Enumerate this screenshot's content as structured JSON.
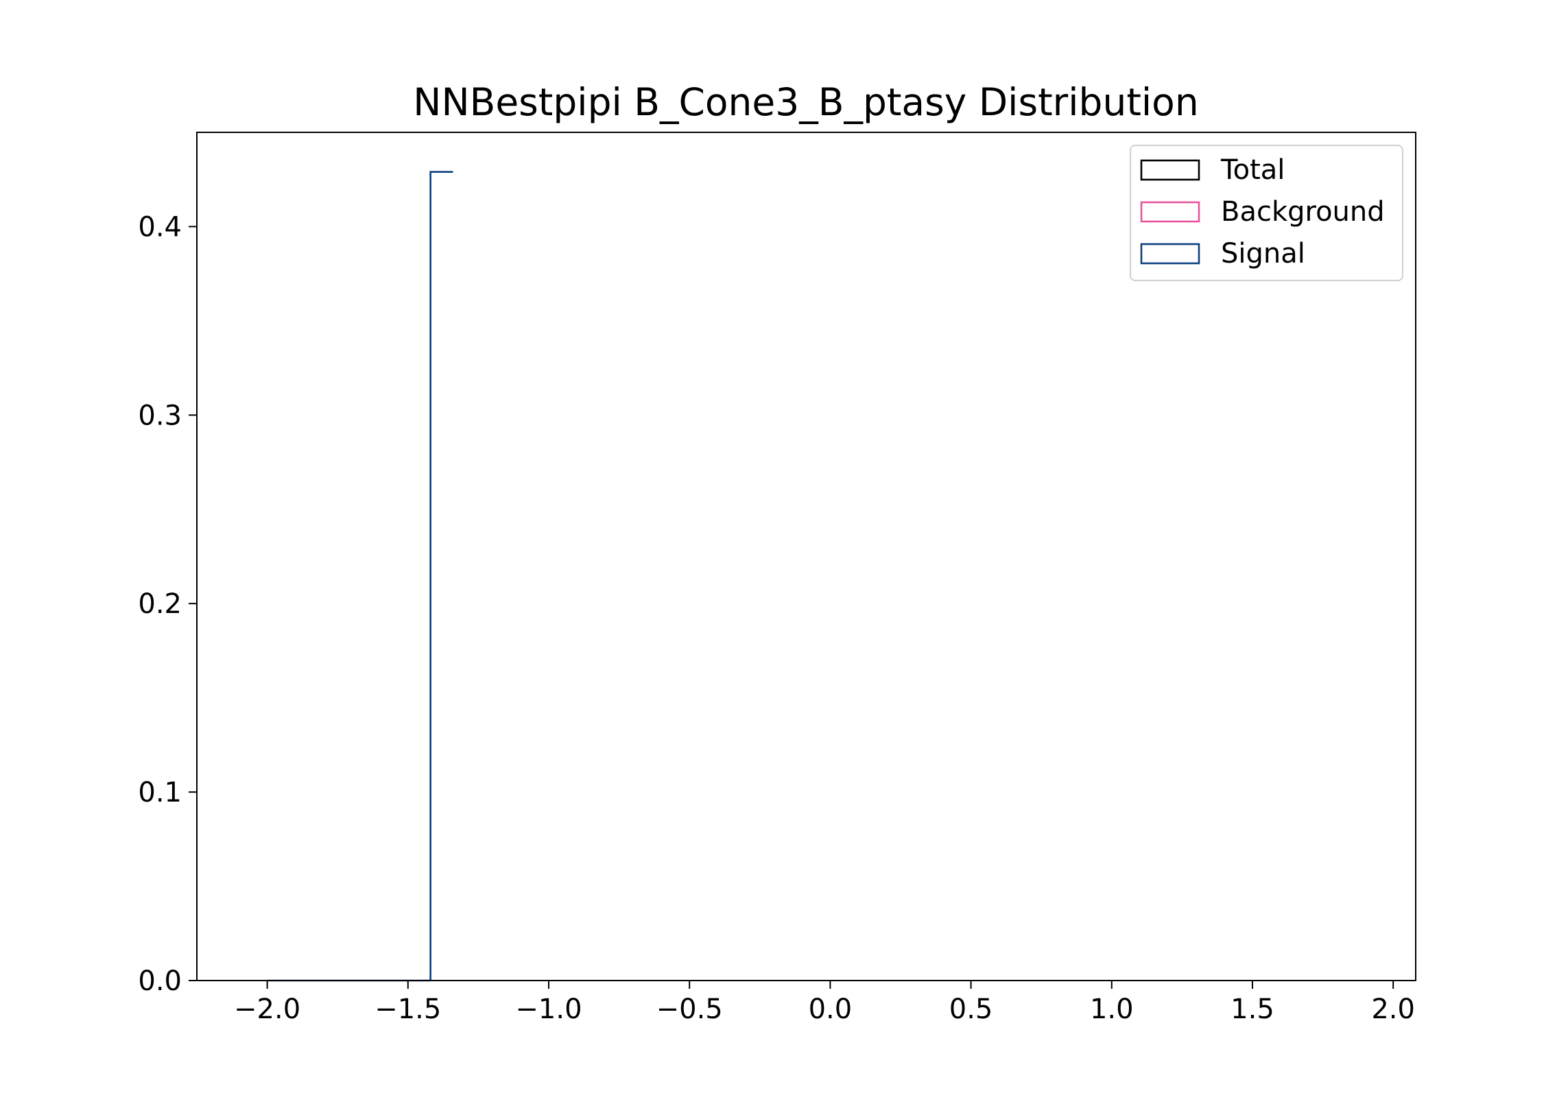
{
  "chart_data": {
    "type": "histogram",
    "title": "NNBestpipi B_Cone3_B_ptasy Distribution",
    "xlabel": "",
    "ylabel": "",
    "xlim": [
      -2.25,
      2.08
    ],
    "ylim": [
      0.0,
      0.45
    ],
    "xticks": [
      -2.0,
      -1.5,
      -1.0,
      -0.5,
      0.0,
      0.5,
      1.0,
      1.5,
      2.0
    ],
    "xtick_labels": [
      "−2.0",
      "−1.5",
      "−1.0",
      "−0.5",
      "0.0",
      "0.5",
      "1.0",
      "1.5",
      "2.0"
    ],
    "yticks": [
      0.0,
      0.1,
      0.2,
      0.3,
      0.4
    ],
    "ytick_labels": [
      "0.0",
      "0.1",
      "0.2",
      "0.3",
      "0.4"
    ],
    "grid": false,
    "legend_position": "top-right",
    "legend": [
      {
        "name": "Total",
        "color": "#000000"
      },
      {
        "name": "Background",
        "color": "#e8559b"
      },
      {
        "name": "Signal",
        "color": "#0b3f7f"
      }
    ],
    "series": [
      {
        "name": "Signal",
        "color": "#0b3f7f",
        "step": [
          {
            "x": -1.42,
            "y": 0.429
          },
          {
            "x": -1.34,
            "y": 0.429
          }
        ],
        "baseline": {
          "x_start": -2.0,
          "x_end": -1.42,
          "y": 0.0
        }
      }
    ]
  }
}
